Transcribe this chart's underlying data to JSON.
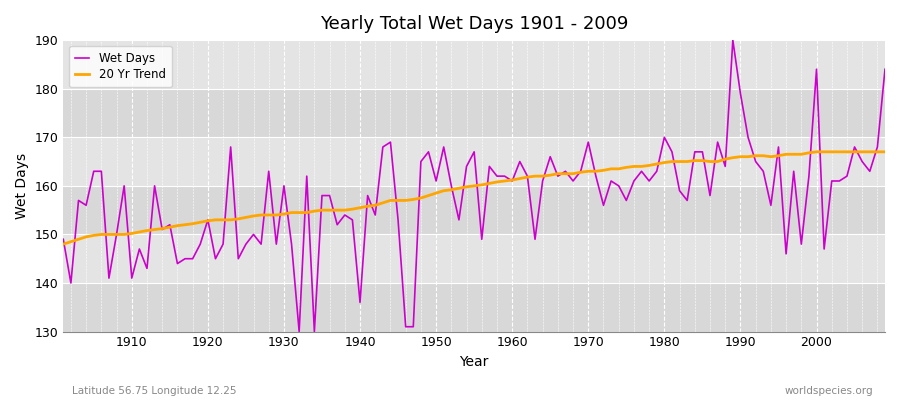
{
  "title": "Yearly Total Wet Days 1901 - 2009",
  "xlabel": "Year",
  "ylabel": "Wet Days",
  "lat_lon_label": "Latitude 56.75 Longitude 12.25",
  "source_label": "worldspecies.org",
  "wet_days_color": "#cc00cc",
  "trend_color": "#ffa500",
  "bg_color": "#dcdcdc",
  "bg_color2": "#e8e8e8",
  "ylim": [
    130,
    190
  ],
  "yticks": [
    130,
    140,
    150,
    160,
    170,
    180,
    190
  ],
  "xlim": [
    1901,
    2009
  ],
  "years": [
    1901,
    1902,
    1903,
    1904,
    1905,
    1906,
    1907,
    1908,
    1909,
    1910,
    1911,
    1912,
    1913,
    1914,
    1915,
    1916,
    1917,
    1918,
    1919,
    1920,
    1921,
    1922,
    1923,
    1924,
    1925,
    1926,
    1927,
    1928,
    1929,
    1930,
    1931,
    1932,
    1933,
    1934,
    1935,
    1936,
    1937,
    1938,
    1939,
    1940,
    1941,
    1942,
    1943,
    1944,
    1945,
    1946,
    1947,
    1948,
    1949,
    1950,
    1951,
    1952,
    1953,
    1954,
    1955,
    1956,
    1957,
    1958,
    1959,
    1960,
    1961,
    1962,
    1963,
    1964,
    1965,
    1966,
    1967,
    1968,
    1969,
    1970,
    1971,
    1972,
    1973,
    1974,
    1975,
    1976,
    1977,
    1978,
    1979,
    1980,
    1981,
    1982,
    1983,
    1984,
    1985,
    1986,
    1987,
    1988,
    1989,
    1990,
    1991,
    1992,
    1993,
    1994,
    1995,
    1996,
    1997,
    1998,
    1999,
    2000,
    2001,
    2002,
    2003,
    2004,
    2005,
    2006,
    2007,
    2008,
    2009
  ],
  "wet_days": [
    149,
    140,
    157,
    156,
    163,
    163,
    141,
    150,
    160,
    141,
    147,
    143,
    160,
    151,
    152,
    144,
    145,
    145,
    148,
    153,
    145,
    148,
    168,
    145,
    148,
    150,
    148,
    163,
    148,
    160,
    148,
    130,
    162,
    130,
    158,
    158,
    152,
    154,
    153,
    136,
    158,
    154,
    168,
    169,
    153,
    131,
    131,
    165,
    167,
    161,
    168,
    160,
    153,
    164,
    167,
    149,
    164,
    162,
    162,
    161,
    165,
    162,
    149,
    161,
    166,
    162,
    163,
    161,
    163,
    169,
    162,
    156,
    161,
    160,
    157,
    161,
    163,
    161,
    163,
    170,
    167,
    159,
    157,
    167,
    167,
    158,
    169,
    164,
    190,
    179,
    170,
    165,
    163,
    156,
    168,
    146,
    163,
    148,
    162,
    184,
    147,
    161,
    161,
    162,
    168,
    165,
    163,
    168,
    184
  ],
  "trend": [
    148.0,
    148.5,
    149.0,
    149.5,
    149.8,
    150.0,
    150.0,
    150.0,
    150.0,
    150.2,
    150.5,
    150.8,
    151.0,
    151.2,
    151.5,
    151.8,
    152.0,
    152.2,
    152.5,
    152.8,
    153.0,
    153.0,
    153.0,
    153.2,
    153.5,
    153.8,
    154.0,
    154.0,
    154.0,
    154.2,
    154.5,
    154.5,
    154.5,
    154.8,
    155.0,
    155.0,
    155.0,
    155.0,
    155.2,
    155.5,
    155.8,
    156.0,
    156.5,
    157.0,
    157.0,
    157.0,
    157.2,
    157.5,
    158.0,
    158.5,
    159.0,
    159.2,
    159.5,
    159.8,
    160.0,
    160.2,
    160.5,
    160.8,
    161.0,
    161.2,
    161.5,
    161.8,
    162.0,
    162.0,
    162.2,
    162.5,
    162.5,
    162.5,
    162.8,
    163.0,
    163.0,
    163.2,
    163.5,
    163.5,
    163.8,
    164.0,
    164.0,
    164.2,
    164.5,
    164.8,
    165.0,
    165.0,
    165.0,
    165.2,
    165.2,
    165.0,
    165.0,
    165.5,
    165.8,
    166.0,
    166.0,
    166.2,
    166.2,
    166.0,
    166.2,
    166.5,
    166.5,
    166.5,
    166.8,
    167.0,
    167.0,
    167.0,
    167.0,
    167.0,
    167.0,
    167.0,
    167.0,
    167.0,
    167.0
  ]
}
